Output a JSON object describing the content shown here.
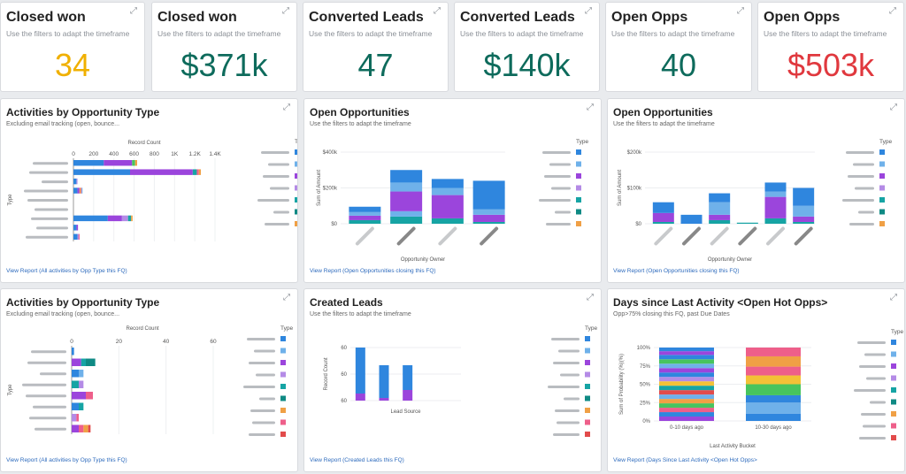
{
  "kpis": [
    {
      "title": "Closed won",
      "subtitle": "Use the filters to adapt the timeframe",
      "value": "34",
      "color": "#f0b000"
    },
    {
      "title": "Closed won",
      "subtitle": "Use the filters to adapt the timeframe",
      "value": "$371k",
      "color": "#0e6b5c"
    },
    {
      "title": "Converted Leads",
      "subtitle": "Use the filters to adapt the timeframe",
      "value": "47",
      "color": "#0e6b5c"
    },
    {
      "title": "Converted Leads",
      "subtitle": "Use the filters to adapt the timeframe",
      "value": "$140k",
      "color": "#0e6b5c"
    },
    {
      "title": "Open Opps",
      "subtitle": "Use the filters to adapt the timeframe",
      "value": "40",
      "color": "#0e6b5c"
    },
    {
      "title": "Open Opps",
      "subtitle": "Use the filters to adapt the timeframe",
      "value": "$503k",
      "color": "#e0383e"
    }
  ],
  "widgets": [
    {
      "title": "Activities by Opportunity Type",
      "subtitle": "Excluding email tracking (open, bounce...",
      "link": "View Report (All activities by Opp Type this FQ)"
    },
    {
      "title": "Open Opportunities",
      "subtitle": "Use the filters to adapt the timeframe",
      "link": "View Report (Open Opportunities closing this FQ)"
    },
    {
      "title": "Open Opportunities",
      "subtitle": "Use the filters to adapt the timeframe",
      "link": "View Report (Open Opportunities closing this FQ)"
    },
    {
      "title": "Activities by Opportunity Type",
      "subtitle": "Excluding email tracking (open, bounce...",
      "link": "View Report (All activities by Opp Type this FQ)"
    },
    {
      "title": "Created Leads",
      "subtitle": "Use the filters to adapt the timeframe",
      "link": "View Report (Created Leads this FQ)"
    },
    {
      "title": "Days since Last Activity <Open Hot Opps>",
      "subtitle": "Opp>75% closing this FQ, past Due Dates",
      "link": "View Report (Days Since Last Activity <Open Hot Opps>"
    }
  ],
  "colors": {
    "blue": "#2f86de",
    "lightblue": "#6fb1ea",
    "purple": "#9b45dc",
    "lavender": "#b48be6",
    "teal": "#16a4a4",
    "tealdark": "#0f8a84",
    "orange": "#f0a045",
    "pink": "#ee5f8a",
    "yellow": "#f3c137",
    "green": "#47c45e",
    "red": "#e24b4b",
    "legend_gray": "#b9bcc0"
  },
  "chart_data": [
    {
      "id": "act1",
      "type": "bar",
      "orientation": "horizontal",
      "title": "Activities by Opportunity Type",
      "xlabel": "Record Count",
      "ylabel": "Type",
      "xticks": [
        "0",
        "200",
        "400",
        "600",
        "800",
        "1K",
        "1.2K",
        "1.4K"
      ],
      "xlim": [
        0,
        1400
      ],
      "legend_title": "Type",
      "rows": [
        [
          [
            300,
            "blue"
          ],
          [
            280,
            "purple"
          ],
          [
            30,
            "green"
          ],
          [
            20,
            "orange"
          ]
        ],
        [
          [
            560,
            "blue"
          ],
          [
            620,
            "purple"
          ],
          [
            40,
            "teal"
          ],
          [
            20,
            "pink"
          ],
          [
            20,
            "orange"
          ]
        ],
        [
          [
            30,
            "blue"
          ],
          [
            10,
            "lavender"
          ]
        ],
        [
          [
            40,
            "blue"
          ],
          [
            20,
            "purple"
          ],
          [
            12,
            "orange"
          ],
          [
            8,
            "pink"
          ],
          [
            10,
            "lightblue"
          ]
        ],
        [],
        [],
        [
          [
            340,
            "blue"
          ],
          [
            140,
            "purple"
          ],
          [
            60,
            "lavender"
          ],
          [
            30,
            "teal"
          ],
          [
            15,
            "orange"
          ]
        ],
        [
          [
            30,
            "blue"
          ],
          [
            15,
            "purple"
          ]
        ],
        [
          [
            40,
            "blue"
          ],
          [
            12,
            "lavender"
          ],
          [
            8,
            "pink"
          ]
        ]
      ]
    },
    {
      "id": "open1",
      "type": "bar",
      "stacked": true,
      "title": "Open Opportunities",
      "xlabel": "Opportunity Owner",
      "ylabel": "Sum of Amount",
      "yticks": [
        "$400k",
        "$200k",
        "$0"
      ],
      "ylim": [
        0,
        400
      ],
      "legend_title": "Type",
      "bars": [
        [
          [
            20,
            "teal"
          ],
          [
            25,
            "purple"
          ],
          [
            20,
            "lightblue"
          ],
          [
            30,
            "blue"
          ]
        ],
        [
          [
            40,
            "teal"
          ],
          [
            30,
            "lightblue"
          ],
          [
            110,
            "purple"
          ],
          [
            50,
            "lightblue"
          ],
          [
            70,
            "blue"
          ]
        ],
        [
          [
            30,
            "teal"
          ],
          [
            130,
            "purple"
          ],
          [
            40,
            "lightblue"
          ],
          [
            50,
            "blue"
          ]
        ],
        [
          [
            10,
            "teal"
          ],
          [
            40,
            "purple"
          ],
          [
            30,
            "lightblue"
          ],
          [
            160,
            "blue"
          ]
        ]
      ]
    },
    {
      "id": "open2",
      "type": "bar",
      "stacked": true,
      "title": "Open Opportunities",
      "xlabel": "Opportunity Owner",
      "ylabel": "Sum of Amount",
      "yticks": [
        "$200k",
        "$100k",
        "$0"
      ],
      "ylim": [
        0,
        200
      ],
      "legend_title": "Type",
      "bars": [
        [
          [
            5,
            "teal"
          ],
          [
            25,
            "purple"
          ],
          [
            30,
            "blue"
          ]
        ],
        [
          [
            25,
            "blue"
          ]
        ],
        [
          [
            10,
            "teal"
          ],
          [
            15,
            "purple"
          ],
          [
            35,
            "lightblue"
          ],
          [
            25,
            "blue"
          ]
        ],
        [
          [
            3,
            "teal"
          ]
        ],
        [
          [
            15,
            "teal"
          ],
          [
            60,
            "purple"
          ],
          [
            15,
            "lightblue"
          ],
          [
            25,
            "blue"
          ]
        ],
        [
          [
            5,
            "teal"
          ],
          [
            15,
            "purple"
          ],
          [
            30,
            "lightblue"
          ],
          [
            50,
            "blue"
          ]
        ]
      ]
    },
    {
      "id": "act2",
      "type": "bar",
      "orientation": "horizontal",
      "title": "Activities by Opportunity Type",
      "xlabel": "Record Count",
      "ylabel": "Type",
      "xticks": [
        "0",
        "20",
        "40",
        "60"
      ],
      "xlim": [
        0,
        60
      ],
      "legend_title": "Type",
      "rows": [
        [
          [
            1,
            "blue"
          ]
        ],
        [
          [
            4,
            "purple"
          ],
          [
            2,
            "teal"
          ],
          [
            4,
            "tealdark"
          ]
        ],
        [
          [
            3,
            "blue"
          ],
          [
            2,
            "lightblue"
          ]
        ],
        [
          [
            3,
            "teal"
          ],
          [
            2,
            "lavender"
          ]
        ],
        [
          [
            6,
            "purple"
          ],
          [
            3,
            "pink"
          ]
        ],
        [
          [
            3,
            "blue"
          ],
          [
            2,
            "teal"
          ]
        ],
        [
          [
            2,
            "lavender"
          ],
          [
            1,
            "pink"
          ]
        ],
        [
          [
            3,
            "purple"
          ],
          [
            2,
            "pink"
          ],
          [
            2,
            "orange"
          ],
          [
            1,
            "red"
          ]
        ]
      ]
    },
    {
      "id": "leads",
      "type": "bar",
      "stacked": true,
      "title": "Created Leads",
      "xlabel": "Lead Source",
      "ylabel": "Record Count",
      "yticks": [
        "60",
        "60",
        "60"
      ],
      "legend_title": "Type",
      "bars": [
        [
          [
            8,
            "purple"
          ],
          [
            52,
            "blue"
          ]
        ],
        [
          [
            3,
            "purple"
          ],
          [
            37,
            "blue"
          ]
        ],
        [
          [
            12,
            "purple"
          ],
          [
            28,
            "blue"
          ]
        ]
      ]
    },
    {
      "id": "days",
      "type": "bar",
      "stacked": true,
      "percent": true,
      "title": "Days since Last Activity <Open Hot Opps>",
      "xlabel": "Last Activity Bucket",
      "ylabel": "Sum of Probability (%)(%)",
      "yticks": [
        "100%",
        "75%",
        "50%",
        "25%",
        "0%"
      ],
      "ylim": [
        0,
        100
      ],
      "categories": [
        "0-10 days ago",
        "10-30 days ago"
      ],
      "legend_title": "Type",
      "bars": [
        [
          [
            6,
            "purple"
          ],
          [
            6,
            "blue"
          ],
          [
            6,
            "pink"
          ],
          [
            6,
            "green"
          ],
          [
            6,
            "orange"
          ],
          [
            6,
            "lightblue"
          ],
          [
            6,
            "red"
          ],
          [
            6,
            "teal"
          ],
          [
            6,
            "yellow"
          ],
          [
            6,
            "lavender"
          ],
          [
            6,
            "blue"
          ],
          [
            6,
            "purple"
          ],
          [
            6,
            "lightblue"
          ],
          [
            6,
            "green"
          ],
          [
            6,
            "blue"
          ],
          [
            5,
            "purple"
          ],
          [
            5,
            "blue"
          ]
        ],
        [
          [
            10,
            "blue"
          ],
          [
            15,
            "lightblue"
          ],
          [
            10,
            "blue"
          ],
          [
            15,
            "green"
          ],
          [
            12,
            "yellow"
          ],
          [
            12,
            "pink"
          ],
          [
            14,
            "orange"
          ],
          [
            12,
            "pink"
          ]
        ]
      ]
    }
  ]
}
